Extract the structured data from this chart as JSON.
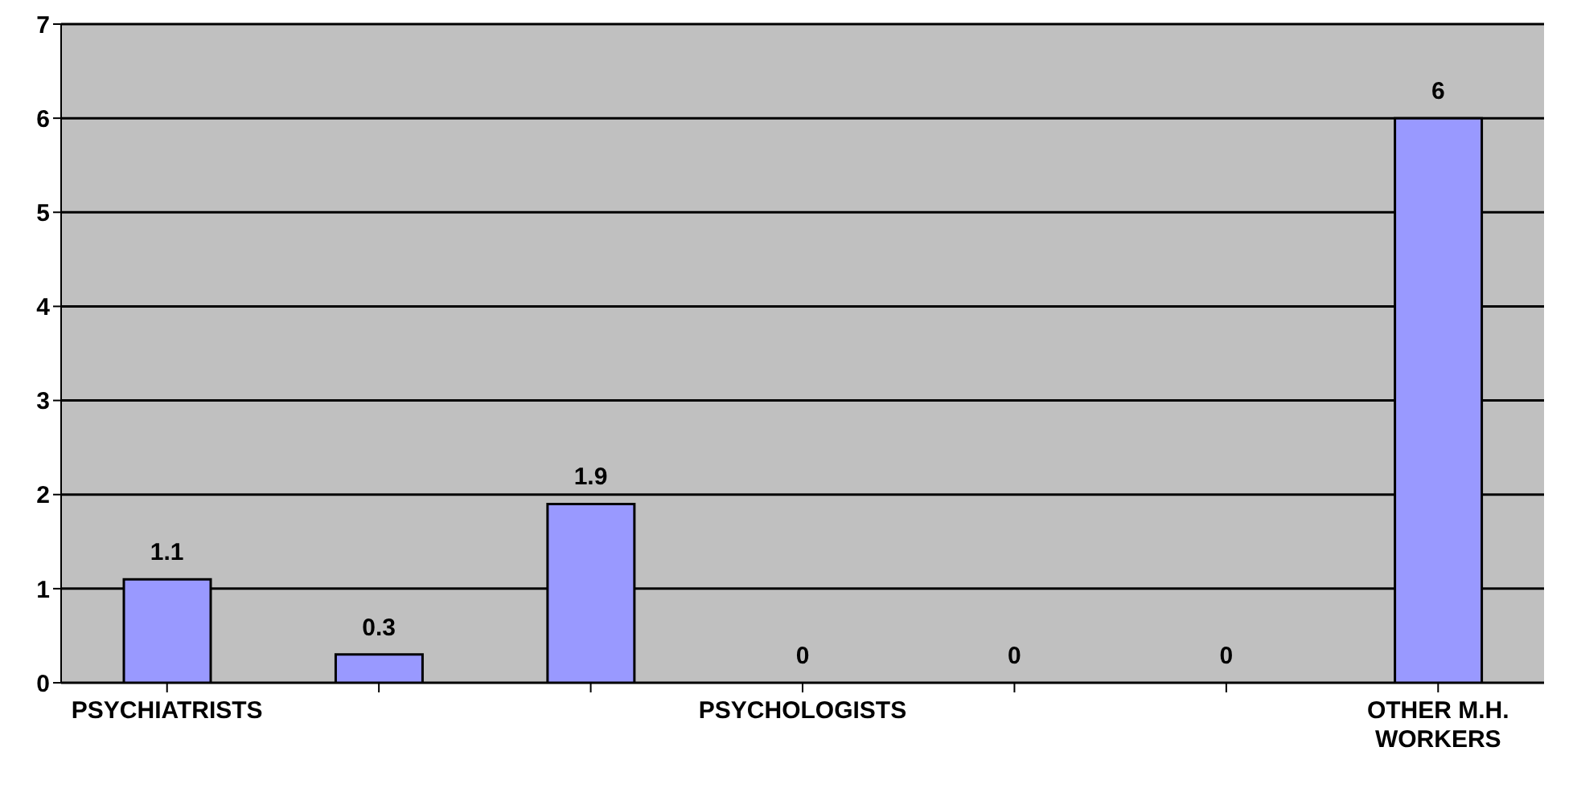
{
  "chart_data": {
    "type": "bar",
    "categories": [
      "PSYCHIATRISTS",
      null,
      null,
      "PSYCHOLOGISTS",
      null,
      null,
      "OTHER M.H. WORKERS"
    ],
    "values": [
      1.1,
      0.3,
      1.9,
      0,
      0,
      0,
      6
    ],
    "color": "#9999ff",
    "ylim": [
      0,
      7
    ],
    "yticks": [
      0,
      1,
      2,
      3,
      4,
      5,
      6,
      7
    ],
    "grid": "y",
    "data_labels": true
  }
}
